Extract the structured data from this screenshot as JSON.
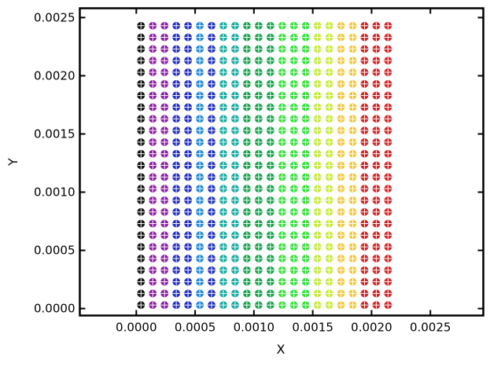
{
  "chart_data": {
    "type": "scatter",
    "title": "",
    "xlabel": "X",
    "ylabel": "Y",
    "xlim": [
      -0.00048,
      0.00295
    ],
    "ylim": [
      -6e-05,
      0.00258
    ],
    "xticks": [
      0.0,
      0.0005,
      0.001,
      0.0015,
      0.002,
      0.0025
    ],
    "xtick_labels": [
      "0.0000",
      "0.0005",
      "0.0010",
      "0.0015",
      "0.0020",
      "0.0025"
    ],
    "yticks": [
      0.0,
      0.0005,
      0.001,
      0.0015,
      0.002,
      0.0025
    ],
    "ytick_labels": [
      "0.0000",
      "0.0005",
      "0.0010",
      "0.0015",
      "0.0020",
      "0.0025"
    ],
    "grid": false,
    "legend": "none",
    "x_start": 4e-05,
    "x_step": 0.0001,
    "y_start": 3e-05,
    "y_step": 0.0001,
    "point_marker": "filled circle with white cross",
    "palette": {
      "k": "#111111",
      "p": "#4b0d57",
      "m": "#8c1aa3",
      "b": "#1f2ec2",
      "c": "#1e88d8",
      "t": "#14aaa0",
      "g": "#16a34a",
      "l": "#35e23a",
      "y": "#c6ea3c",
      "o": "#f2c83c",
      "r": "#ee7a2c",
      "d": "#d42323",
      "s": "#d4a0a0",
      "w": "#cfcfcf"
    },
    "point_rows": [
      "kmmbbcbttggglllyyooddd",
      "kmmbbcbttggglllyyooddd",
      "kmmbbcbttggglllyyooddd",
      "kmmbbcbttggglllyyooddd",
      "kmmbbcbttggglllyyooddd",
      "kmmbbcbttggglllyyooddd",
      "kmmbbcbttggglllyyooddd",
      "kmmbbcbttggglllyyooddd",
      "kmmbbcbttggglllyyooddd",
      "kmmbbcbttggglllyyooddd",
      "kmmbbcbttggglllyyooddd",
      "kmmbbcbttggglllyyooddd",
      "kmmbbcbttggglllyyooddd",
      "kmmbbcbttggglllyyooddd",
      "kmmbbcbttggglllyyooddd",
      "kmmbbcbttggglllyyooddd",
      "kmmbbcbttggglllyyooddd",
      "kmmbbcbttggglllyyooddd",
      "kmmbbcbttggglllyyooddd",
      "kmmbbcbttggglllyyooddd",
      "kmmbbcbttggglllyyooddd",
      "kmmbbcbttggglllyyooddd",
      "kmmbbcbttggglllyyooddd",
      "kmmbbcbttggglllyyooddd",
      "kmmbbcbttggglllyyooddd"
    ]
  }
}
